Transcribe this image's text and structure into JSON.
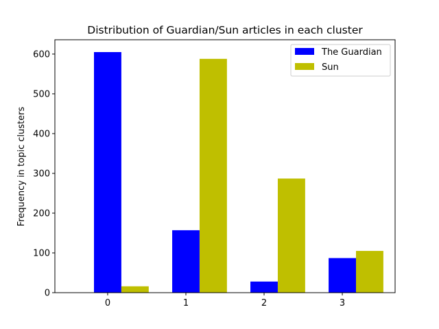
{
  "chart_data": {
    "type": "bar",
    "title": "Distribution of Guardian/Sun articles in each cluster",
    "xlabel": "",
    "ylabel": "Frequency in topic clusters",
    "categories": [
      "0",
      "1",
      "2",
      "3"
    ],
    "series": [
      {
        "name": "The Guardian",
        "color": "#0000ff",
        "values": [
          605,
          157,
          28,
          87
        ]
      },
      {
        "name": "Sun",
        "color": "#bfbf00",
        "values": [
          16,
          588,
          287,
          105
        ]
      }
    ],
    "ylim": [
      0,
      636
    ],
    "yticks": [
      0,
      100,
      200,
      300,
      400,
      500,
      600
    ],
    "grid": false,
    "legend_position": "top-right"
  }
}
